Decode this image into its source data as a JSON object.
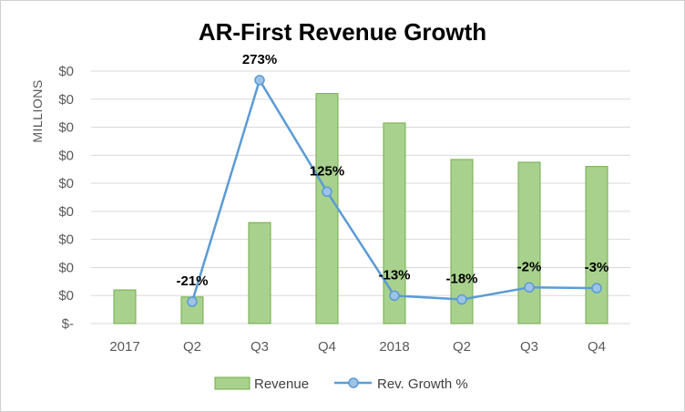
{
  "chart_data": {
    "type": "bar+line",
    "title": "AR-First Revenue Growth",
    "ylabel": "MILLIONS",
    "y_tick_labels": [
      "$-",
      "$0",
      "$0",
      "$0",
      "$0",
      "$0",
      "$0",
      "$0",
      "$0",
      "$0"
    ],
    "ylim": [
      0,
      9
    ],
    "categories": [
      "2017",
      "Q2",
      "Q3",
      "Q4",
      "2018",
      "Q2",
      "Q3",
      "Q4"
    ],
    "series": [
      {
        "name": "Revenue",
        "type": "bar",
        "color": "#a9d18e",
        "values": [
          1.2,
          0.95,
          3.6,
          8.2,
          7.15,
          5.85,
          5.75,
          5.6
        ]
      },
      {
        "name": "Rev. Growth %",
        "type": "line",
        "color": "#5b9bd5",
        "secondary_axis": true,
        "ylim": [
          -50,
          285
        ],
        "values": [
          null,
          -21,
          273,
          125,
          -13,
          -18,
          -2,
          -3
        ],
        "labels": [
          "",
          "-21%",
          "273%",
          "125%",
          "-13%",
          "-18%",
          "-2%",
          "-3%"
        ]
      }
    ],
    "legend": [
      "Revenue",
      "Rev. Growth %"
    ],
    "legend_position": "bottom",
    "grid": true
  }
}
